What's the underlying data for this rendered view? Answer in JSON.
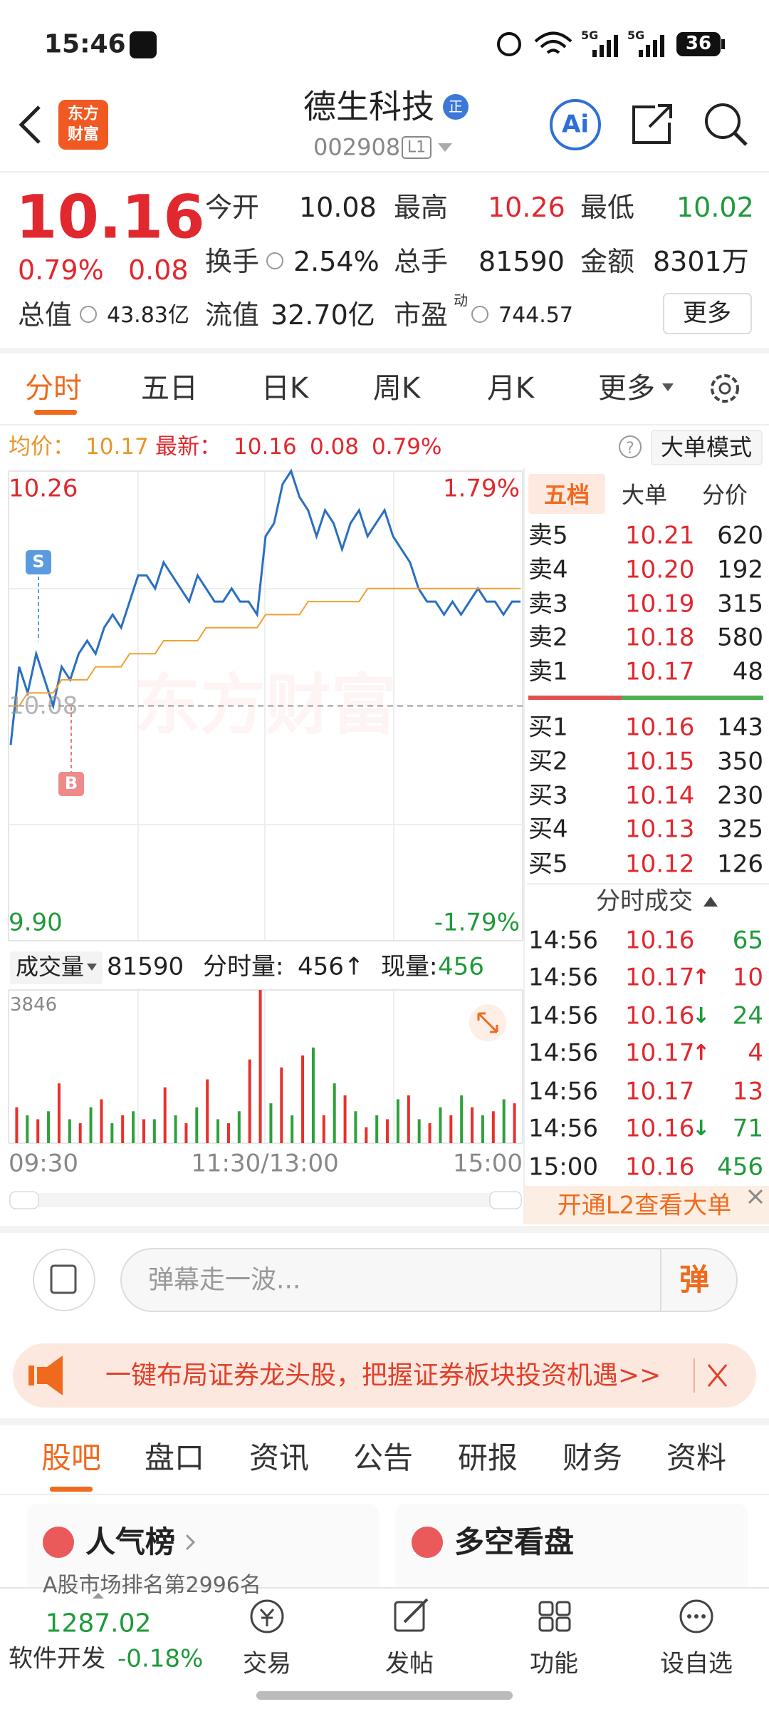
{
  "status_bar": {
    "time": "15:46",
    "network": [
      "5G",
      "5G"
    ],
    "battery": "36"
  },
  "header": {
    "logo": [
      "东方",
      "财富"
    ],
    "title": "德生科技",
    "badge": "正",
    "code": "002908",
    "level": "L1",
    "ai": "Ai"
  },
  "quote": {
    "price": "10.16",
    "change_pct": "0.79%",
    "change": "0.08",
    "fields": [
      {
        "label": "今开",
        "value": "10.08"
      },
      {
        "label": "最高",
        "value": "10.26"
      },
      {
        "label": "最低",
        "value": "10.02"
      },
      {
        "label": "换手",
        "value": "2.54%"
      },
      {
        "label": "总手",
        "value": "81590"
      },
      {
        "label": "金额",
        "value": "8301万"
      },
      {
        "label": "总值",
        "value": "43.83亿"
      },
      {
        "label": "流值",
        "value": "32.70亿"
      },
      {
        "label": "市盈",
        "sup": "动",
        "value": "744.57"
      }
    ],
    "more": "更多"
  },
  "chart_tabs": [
    "分时",
    "五日",
    "日K",
    "周K",
    "月K",
    "更多"
  ],
  "info_line": {
    "avg_label": "均价：",
    "avg": "10.17",
    "last_label": "最新：",
    "last": "10.16",
    "change": "0.08",
    "change_pct": "0.79%",
    "mode": "大单模式"
  },
  "chart_data": [
    {
      "type": "line",
      "watermark": "东方财富",
      "markers": [
        "S",
        "B"
      ],
      "ylim": [
        9.9,
        10.26
      ],
      "yticks": [
        10.26,
        10.08,
        {
          "value": 9.9,
          "label": "9.90"
        }
      ],
      "y2lim": [
        -1.79,
        1.79
      ],
      "y2ticks": [
        {
          "value": 1.79,
          "label": "1.79%"
        },
        {
          "value": -1.79,
          "label": "-1.79%"
        }
      ],
      "series": [
        {
          "color": "#2a6fc0",
          "values": [
            10.05,
            10.11,
            10.09,
            10.12,
            10.1,
            10.08,
            10.11,
            10.1,
            10.12,
            10.13,
            10.12,
            10.14,
            10.15,
            10.14,
            10.16,
            10.18,
            10.18,
            10.17,
            10.19,
            10.18,
            10.17,
            10.16,
            10.18,
            10.17,
            10.16,
            10.16,
            10.17,
            10.16,
            10.16,
            10.15,
            10.21,
            10.22,
            10.25,
            10.26,
            10.24,
            10.23,
            10.21,
            10.23,
            10.22,
            10.2,
            10.22,
            10.23,
            10.21,
            10.22,
            10.23,
            10.21,
            10.2,
            10.19,
            10.17,
            10.16,
            10.16,
            10.15,
            10.16,
            10.15,
            10.16,
            10.17,
            10.16,
            10.16,
            10.15,
            10.16,
            10.16
          ]
        },
        {
          "color": "#f0a030",
          "values": [
            10.08,
            10.08,
            10.09,
            10.09,
            10.09,
            10.09,
            10.1,
            10.1,
            10.1,
            10.1,
            10.11,
            10.11,
            10.11,
            10.11,
            10.12,
            10.12,
            10.12,
            10.12,
            10.13,
            10.13,
            10.13,
            10.13,
            10.13,
            10.14,
            10.14,
            10.14,
            10.14,
            10.14,
            10.14,
            10.14,
            10.15,
            10.15,
            10.15,
            10.15,
            10.15,
            10.16,
            10.16,
            10.16,
            10.16,
            10.16,
            10.16,
            10.16,
            10.17,
            10.17,
            10.17,
            10.17,
            10.17,
            10.17,
            10.17,
            10.17,
            10.17,
            10.17,
            10.17,
            10.17,
            10.17,
            10.17,
            10.17,
            10.17,
            10.17,
            10.17,
            10.17
          ]
        }
      ]
    },
    {
      "type": "bar",
      "header": {
        "label": "成交量",
        "total": "81590",
        "interval_label": "分时量:",
        "interval": "456↑",
        "current_label": "现量:",
        "current": "456"
      },
      "ylim": [
        0,
        3846
      ],
      "yticks": [
        3846
      ],
      "xticks": [
        "09:30",
        "11:30/13:00",
        "15:00"
      ],
      "series": [
        {
          "color": "#e8302a",
          "values": [
            900,
            null,
            600,
            null,
            1500,
            null,
            500,
            null,
            1100,
            null,
            700,
            null,
            600,
            null,
            1400,
            null,
            500,
            null,
            1600,
            null,
            500,
            null,
            2100,
            3846,
            null,
            1900,
            null,
            2200,
            null,
            700,
            null,
            1200,
            null,
            400,
            null,
            600,
            null,
            1200,
            null,
            500,
            null,
            700,
            null,
            900,
            null,
            800,
            null,
            1000
          ]
        },
        {
          "color": "#2ea13a",
          "values": [
            null,
            700,
            null,
            800,
            null,
            600,
            null,
            900,
            null,
            500,
            null,
            800,
            null,
            600,
            null,
            700,
            null,
            900,
            null,
            600,
            null,
            800,
            null,
            null,
            1000,
            null,
            700,
            null,
            2400,
            null,
            1500,
            null,
            800,
            null,
            700,
            null,
            1100,
            null,
            600,
            null,
            900,
            null,
            1200,
            null,
            700,
            null,
            1100,
            null
          ]
        }
      ]
    }
  ],
  "order_book": {
    "tabs": [
      "五档",
      "大单",
      "分价"
    ],
    "asks": [
      {
        "label": "卖5",
        "price": "10.21",
        "volume": "620"
      },
      {
        "label": "卖4",
        "price": "10.20",
        "volume": "192"
      },
      {
        "label": "卖3",
        "price": "10.19",
        "volume": "315"
      },
      {
        "label": "卖2",
        "price": "10.18",
        "volume": "580"
      },
      {
        "label": "卖1",
        "price": "10.17",
        "volume": "48"
      }
    ],
    "bids": [
      {
        "label": "买1",
        "price": "10.16",
        "volume": "143"
      },
      {
        "label": "买2",
        "price": "10.15",
        "volume": "350"
      },
      {
        "label": "买3",
        "price": "10.14",
        "volume": "230"
      },
      {
        "label": "买4",
        "price": "10.13",
        "volume": "325"
      },
      {
        "label": "买5",
        "price": "10.12",
        "volume": "126"
      }
    ]
  },
  "trades": {
    "title": "分时成交",
    "rows": [
      {
        "time": "14:56",
        "price": "10.16",
        "volume": "65",
        "color": "#1f9a3a"
      },
      {
        "time": "14:56",
        "price": "10.17",
        "arrow": "↑",
        "volume": "10",
        "color": "#e0282e"
      },
      {
        "time": "14:56",
        "price": "10.16",
        "arrow": "↓",
        "volume": "24",
        "color": "#1f9a3a"
      },
      {
        "time": "14:56",
        "price": "10.17",
        "arrow": "↑",
        "volume": "4",
        "color": "#e0282e"
      },
      {
        "time": "14:56",
        "price": "10.17",
        "volume": "13",
        "color": "#e0282e"
      },
      {
        "time": "14:56",
        "price": "10.16",
        "arrow": "↓",
        "volume": "71",
        "color": "#1f9a3a"
      },
      {
        "time": "15:00",
        "price": "10.16",
        "volume": "456",
        "color": "#1f9a3a"
      }
    ]
  },
  "l2_banner": "开通L2查看大单",
  "danmaku": {
    "placeholder": "弹幕走一波...",
    "button": "弹"
  },
  "promo": "一键布局证券龙头股，把握证券板块投资机遇>>",
  "section_tabs": [
    "股吧",
    "盘口",
    "资讯",
    "公告",
    "研报",
    "财务",
    "资料"
  ],
  "cards": [
    {
      "title": "人气榜",
      "subtitle": "A股市场排名第2996名"
    },
    {
      "title": "多空看盘"
    }
  ],
  "bottom_nav": {
    "index_value": "1287.02",
    "index_name": "软件开发",
    "index_change": "-0.18%",
    "items": [
      "交易",
      "发帖",
      "功能",
      "设自选"
    ]
  }
}
